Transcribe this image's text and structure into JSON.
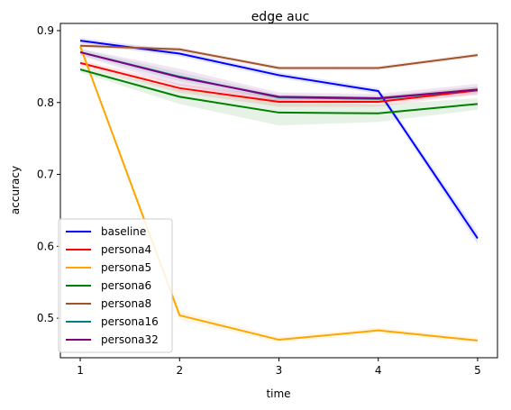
{
  "chart_data": {
    "type": "line",
    "title": "edge auc",
    "xlabel": "time",
    "ylabel": "accuracy",
    "x": [
      1,
      2,
      3,
      4,
      5
    ],
    "xlim": [
      0.8,
      5.2
    ],
    "ylim": [
      0.445,
      0.91
    ],
    "xticks": [
      1,
      2,
      3,
      4,
      5
    ],
    "yticks": [
      0.5,
      0.6,
      0.7,
      0.8,
      0.9
    ],
    "ytick_labels": [
      "0.5",
      "0.6",
      "0.7",
      "0.8",
      "0.9"
    ],
    "grid": false,
    "legend_position": "lower-left",
    "series": [
      {
        "name": "baseline",
        "color": "#0000ff",
        "values": [
          0.886,
          0.868,
          0.838,
          0.816,
          0.611
        ],
        "band": [
          0.004,
          0.004,
          0.004,
          0.004,
          0.008
        ]
      },
      {
        "name": "persona4",
        "color": "#ff0000",
        "values": [
          0.855,
          0.82,
          0.801,
          0.801,
          0.817
        ],
        "band": [
          0.004,
          0.006,
          0.007,
          0.007,
          0.005
        ]
      },
      {
        "name": "persona5",
        "color": "#ffa500",
        "values": [
          0.878,
          0.504,
          0.47,
          0.483,
          0.469
        ],
        "band": [
          0.004,
          0.006,
          0.004,
          0.004,
          0.004
        ]
      },
      {
        "name": "persona6",
        "color": "#008000",
        "values": [
          0.846,
          0.808,
          0.786,
          0.785,
          0.798
        ],
        "band": [
          0.004,
          0.01,
          0.018,
          0.012,
          0.008
        ]
      },
      {
        "name": "persona8",
        "color": "#a0522d",
        "values": [
          0.879,
          0.874,
          0.848,
          0.848,
          0.866
        ],
        "band": [
          0.003,
          0.003,
          0.003,
          0.003,
          0.003
        ]
      },
      {
        "name": "persona16",
        "color": "#008080",
        "values": [
          0.87,
          0.836,
          0.807,
          0.805,
          0.818
        ],
        "band": [
          0.004,
          0.006,
          0.004,
          0.004,
          0.004
        ]
      },
      {
        "name": "persona32",
        "color": "#800080",
        "values": [
          0.87,
          0.835,
          0.808,
          0.806,
          0.818
        ],
        "band": [
          0.005,
          0.012,
          0.006,
          0.006,
          0.008
        ]
      }
    ]
  }
}
